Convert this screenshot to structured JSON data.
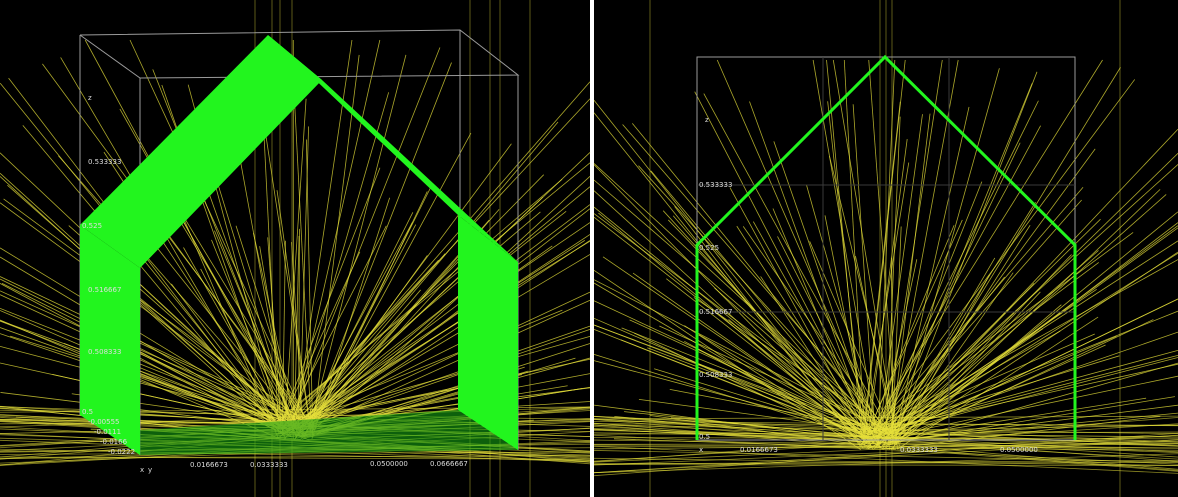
{
  "left_view": {
    "axis_z": "z",
    "axis_x": "x",
    "axis_y": "y",
    "z_ticks": [
      "0.533333",
      "0.525",
      "0.516667",
      "0.508333",
      "0.5"
    ],
    "y_ticks": [
      "-0.00555",
      "-0.0111",
      "-0.0166",
      "-0.0222"
    ],
    "x_ticks": [
      "0.0166673",
      "0.0333333",
      "0.0500000",
      "0.0666667"
    ]
  },
  "right_view": {
    "axis_z": "z",
    "axis_x": "x",
    "z_ticks": [
      "0.533333",
      "0.525",
      "0.516667",
      "0.508333",
      "0.5"
    ],
    "x_ticks": [
      "0.0166673",
      "0.0333333",
      "0.0500000"
    ]
  }
}
